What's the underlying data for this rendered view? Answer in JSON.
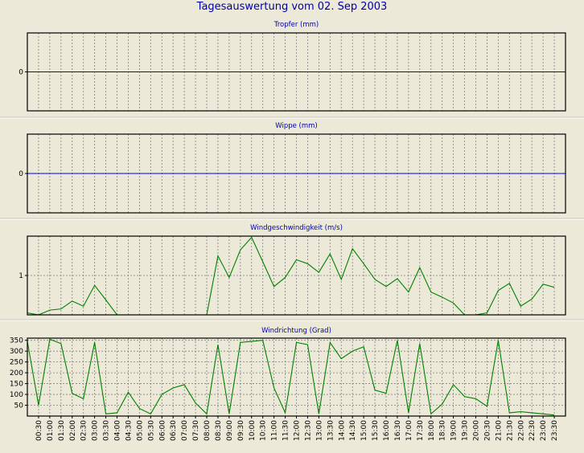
{
  "page_title": "Tagesauswertung vom 02. Sep 2003",
  "colors": {
    "background": "#ece9d8",
    "title": "#0000aa",
    "zero_line": "#0000ff",
    "series_line": "#008000",
    "grid": "#808080",
    "frame": "#000000"
  },
  "time_labels": [
    "00:30",
    "01:00",
    "01:30",
    "02:00",
    "02:30",
    "03:00",
    "03:30",
    "04:00",
    "04:30",
    "05:00",
    "05:30",
    "06:00",
    "06:30",
    "07:00",
    "07:30",
    "08:00",
    "08:30",
    "09:00",
    "09:30",
    "10:00",
    "10:30",
    "11:00",
    "11:30",
    "12:00",
    "12:30",
    "13:00",
    "13:30",
    "14:00",
    "14:30",
    "15:00",
    "15:30",
    "16:00",
    "16:30",
    "17:00",
    "17:30",
    "18:00",
    "18:30",
    "19:00",
    "19:30",
    "20:00",
    "20:30",
    "21:00",
    "21:30",
    "22:00",
    "22:30",
    "23:00",
    "23:30"
  ],
  "chart_data": [
    {
      "type": "line",
      "title": "Tropfer (mm)",
      "yticks": [
        0
      ],
      "ylim": [
        -1,
        1
      ],
      "zero_line": true,
      "series": []
    },
    {
      "type": "line",
      "title": "Wippe (mm)",
      "yticks": [
        0
      ],
      "ylim": [
        -1,
        1
      ],
      "zero_line": true,
      "series": []
    },
    {
      "type": "line",
      "title": "Windgeschwindigkeit (m/s)",
      "yticks": [
        1
      ],
      "ylim": [
        0,
        2
      ],
      "zero_line": false,
      "series": [
        {
          "values": [
            0.05,
            0.0,
            0.12,
            0.15,
            0.35,
            0.22,
            0.75,
            0.38,
            0.0,
            0.0,
            0.0,
            0.0,
            0.0,
            0.0,
            0.0,
            0.0,
            0.0,
            1.5,
            0.95,
            1.65,
            1.97,
            1.35,
            0.72,
            0.95,
            1.4,
            1.3,
            1.08,
            1.55,
            0.9,
            1.68,
            1.3,
            0.9,
            0.72,
            0.92,
            0.58,
            1.2,
            0.58,
            0.45,
            0.3,
            0.0,
            0.0,
            0.05,
            0.62,
            0.8,
            0.22,
            0.4,
            0.78,
            0.7
          ]
        }
      ]
    },
    {
      "type": "line",
      "title": "Windrichtung (Grad)",
      "yticks": [
        50,
        100,
        150,
        200,
        250,
        300,
        350
      ],
      "ylim": [
        0,
        360
      ],
      "zero_line": false,
      "series": [
        {
          "values": [
            345,
            50,
            355,
            335,
            105,
            80,
            340,
            10,
            15,
            110,
            35,
            10,
            100,
            130,
            145,
            60,
            10,
            330,
            10,
            340,
            345,
            350,
            130,
            15,
            340,
            330,
            10,
            340,
            265,
            300,
            320,
            120,
            105,
            350,
            15,
            335,
            10,
            55,
            145,
            90,
            80,
            45,
            350,
            15,
            20,
            15,
            10,
            5
          ]
        }
      ]
    }
  ]
}
